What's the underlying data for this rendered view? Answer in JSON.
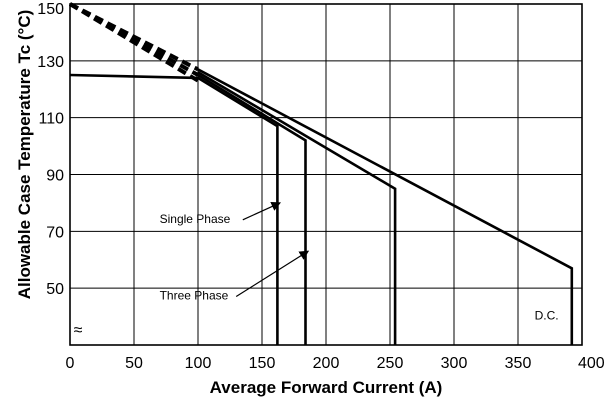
{
  "chart_data": {
    "type": "line",
    "xlabel": "Average Forward Current (A)",
    "ylabel": "Allowable Case Temperature Tc (°C)",
    "xlim": [
      0,
      400
    ],
    "ylim": [
      30,
      150
    ],
    "x_ticks": [
      "0",
      "50",
      "100",
      "150",
      "200",
      "250",
      "300",
      "350",
      "400"
    ],
    "y_ticks": [
      "50",
      "70",
      "90",
      "110",
      "130",
      "150"
    ],
    "y_break": "≈",
    "grid": true,
    "extrapolation_lines": [
      {
        "x": [
          0,
          100
        ],
        "y": [
          150,
          127
        ]
      },
      {
        "x": [
          0,
          100
        ],
        "y": [
          150,
          125
        ]
      },
      {
        "x": [
          0,
          100
        ],
        "y": [
          150,
          123
        ]
      }
    ],
    "series": [
      {
        "x": [
          0,
          100,
          162,
          162
        ],
        "y": [
          125,
          124,
          107,
          30
        ]
      },
      {
        "x": [
          100,
          184,
          184
        ],
        "y": [
          125,
          102,
          30
        ]
      },
      {
        "x": [
          100,
          254,
          254
        ],
        "y": [
          126,
          85,
          30
        ]
      },
      {
        "x": [
          100,
          392,
          392
        ],
        "y": [
          127,
          57,
          30
        ]
      }
    ],
    "annotations": [
      {
        "text": "Single Phase",
        "x": 70,
        "y": 73,
        "arrow_to": [
          164,
          80
        ]
      },
      {
        "text": "Three Phase",
        "x": 70,
        "y": 46,
        "arrow_to": [
          186,
          63
        ]
      },
      {
        "text": "D.C.",
        "x": 363,
        "y": 39
      }
    ]
  }
}
